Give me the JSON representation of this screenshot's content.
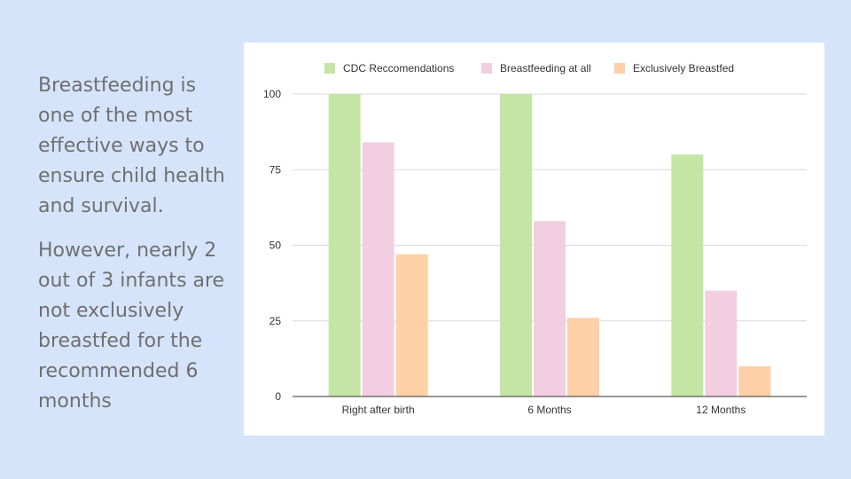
{
  "slide": {
    "paragraphs": [
      "Breastfeeding is one of the most effective ways to ensure child health and survival.",
      "However, nearly 2 out of 3 infants are not exclusively breastfed for the recommended 6 months"
    ]
  },
  "chart_data": {
    "type": "bar",
    "categories": [
      "Right after birth",
      "6 Months",
      "12 Months"
    ],
    "series": [
      {
        "name": "CDC Reccomendations",
        "values": [
          100,
          100,
          80
        ],
        "color": "#c5e5a4"
      },
      {
        "name": "Breastfeeding at all",
        "values": [
          84,
          58,
          35
        ],
        "color": "#f1cfe0"
      },
      {
        "name": "Exclusively Breastfed",
        "values": [
          47,
          26,
          10
        ],
        "color": "#fdd0a8"
      }
    ],
    "yticks": [
      "0",
      "25",
      "50",
      "75",
      "100"
    ],
    "ylim": [
      0,
      100
    ],
    "grid": true,
    "legend_position": "top"
  }
}
